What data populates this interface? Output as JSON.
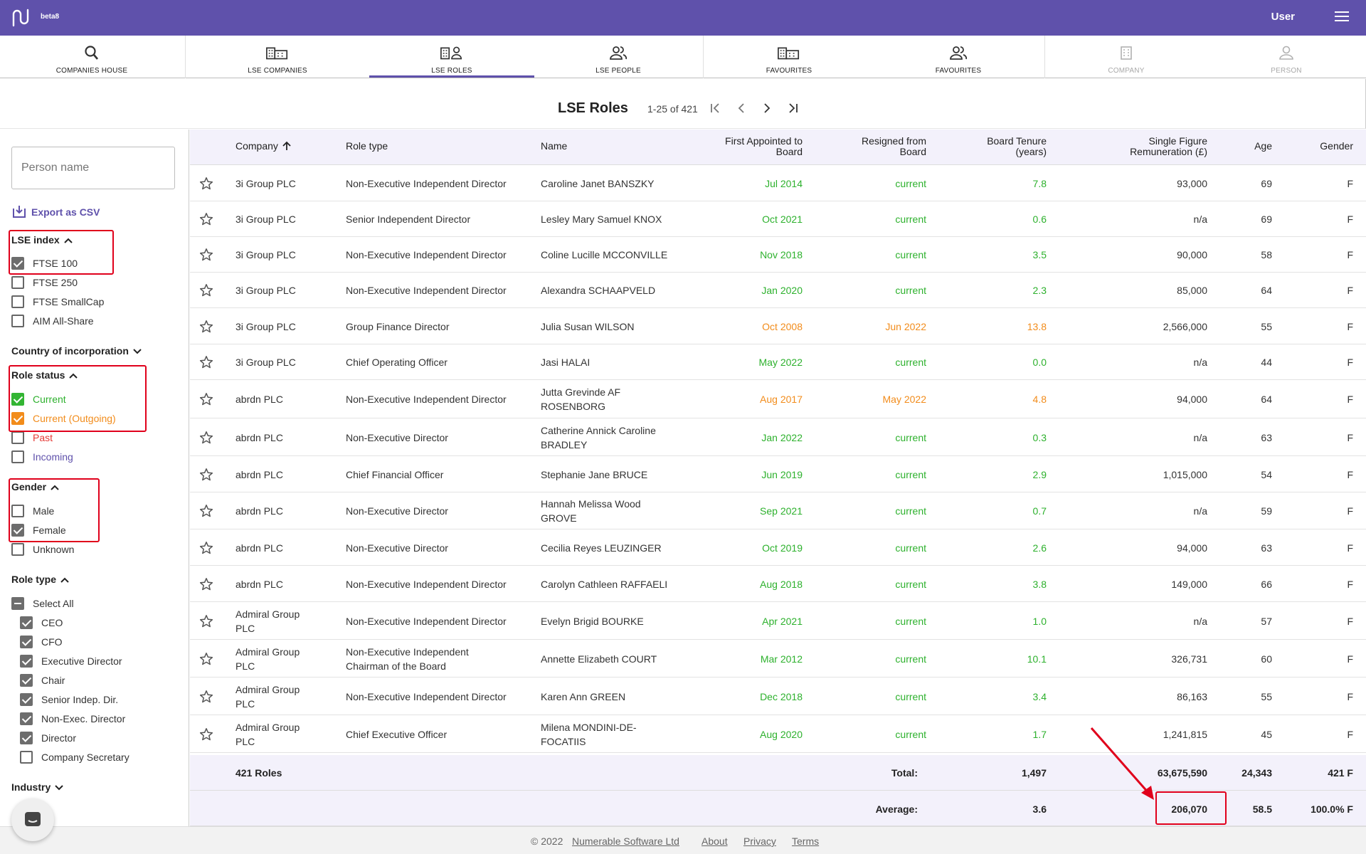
{
  "app": {
    "beta": "beta8",
    "user": "User"
  },
  "nav": [
    {
      "label": "COMPANIES HOUSE",
      "icon": "search-icon"
    },
    {
      "label": "LSE COMPANIES",
      "icon": "buildings-icon"
    },
    {
      "label": "LSE ROLES",
      "icon": "building-person-icon"
    },
    {
      "label": "LSE PEOPLE",
      "icon": "people-icon"
    },
    {
      "label": "FAVOURITES",
      "icon": "buildings-icon"
    },
    {
      "label": "FAVOURITES",
      "icon": "people-icon"
    },
    {
      "label": "COMPANY",
      "icon": "building-icon"
    },
    {
      "label": "PERSON",
      "icon": "person-icon"
    }
  ],
  "page": {
    "title": "LSE Roles",
    "range": "1-25 of 421"
  },
  "sidebar": {
    "search_placeholder": "Person name",
    "export": "Export as CSV",
    "lse_index": {
      "title": "LSE index",
      "items": [
        "FTSE 100",
        "FTSE 250",
        "FTSE SmallCap",
        "AIM All-Share"
      ]
    },
    "country": {
      "title": "Country of incorporation"
    },
    "role_status": {
      "title": "Role status",
      "items": [
        "Current",
        "Current (Outgoing)",
        "Past",
        "Incoming"
      ]
    },
    "gender": {
      "title": "Gender",
      "items": [
        "Male",
        "Female",
        "Unknown"
      ]
    },
    "role_type": {
      "title": "Role type",
      "items": [
        "Select All",
        "CEO",
        "CFO",
        "Executive Director",
        "Chair",
        "Senior Indep. Dir.",
        "Non-Exec. Director",
        "Director",
        "Company Secretary"
      ]
    },
    "industry": {
      "title": "Industry"
    }
  },
  "columns": {
    "company": "Company",
    "role": "Role type",
    "name": "Name",
    "appointed_1": "First Appointed to",
    "appointed_2": "Board",
    "resigned_1": "Resigned from",
    "resigned_2": "Board",
    "tenure_1": "Board Tenure",
    "tenure_2": "(years)",
    "rem_1": "Single Figure",
    "rem_2": "Remuneration (£)",
    "age": "Age",
    "gender": "Gender"
  },
  "rows": [
    {
      "company": "3i Group PLC",
      "role": "Non-Executive Independent Director",
      "name": "Caroline Janet BANSZKY",
      "appointed": "Jul 2014",
      "resigned": "current",
      "tenure": "7.8",
      "rem": "93,000",
      "age": "69",
      "gender": "F"
    },
    {
      "company": "3i Group PLC",
      "role": "Senior Independent Director",
      "name": "Lesley Mary Samuel KNOX",
      "appointed": "Oct 2021",
      "resigned": "current",
      "tenure": "0.6",
      "rem": "n/a",
      "age": "69",
      "gender": "F"
    },
    {
      "company": "3i Group PLC",
      "role": "Non-Executive Independent Director",
      "name": "Coline Lucille MCCONVILLE",
      "appointed": "Nov 2018",
      "resigned": "current",
      "tenure": "3.5",
      "rem": "90,000",
      "age": "58",
      "gender": "F"
    },
    {
      "company": "3i Group PLC",
      "role": "Non-Executive Independent Director",
      "name": "Alexandra SCHAAPVELD",
      "appointed": "Jan 2020",
      "resigned": "current",
      "tenure": "2.3",
      "rem": "85,000",
      "age": "64",
      "gender": "F"
    },
    {
      "company": "3i Group PLC",
      "role": "Group Finance Director",
      "name": "Julia Susan WILSON",
      "appointed": "Oct 2008",
      "resigned": "Jun 2022",
      "tenure": "13.8",
      "rem": "2,566,000",
      "age": "55",
      "gender": "F"
    },
    {
      "company": "3i Group PLC",
      "role": "Chief Operating Officer",
      "name": "Jasi HALAI",
      "appointed": "May 2022",
      "resigned": "current",
      "tenure": "0.0",
      "rem": "n/a",
      "age": "44",
      "gender": "F"
    },
    {
      "company": "abrdn PLC",
      "role": "Non-Executive Independent Director",
      "name_1": "Jutta Grevinde AF",
      "name_2": "ROSENBORG",
      "appointed": "Aug 2017",
      "resigned": "May 2022",
      "tenure": "4.8",
      "rem": "94,000",
      "age": "64",
      "gender": "F"
    },
    {
      "company": "abrdn PLC",
      "role": "Non-Executive Director",
      "name_1": "Catherine Annick Caroline",
      "name_2": "BRADLEY",
      "appointed": "Jan 2022",
      "resigned": "current",
      "tenure": "0.3",
      "rem": "n/a",
      "age": "63",
      "gender": "F"
    },
    {
      "company": "abrdn PLC",
      "role": "Chief Financial Officer",
      "name": "Stephanie Jane BRUCE",
      "appointed": "Jun 2019",
      "resigned": "current",
      "tenure": "2.9",
      "rem": "1,015,000",
      "age": "54",
      "gender": "F"
    },
    {
      "company": "abrdn PLC",
      "role": "Non-Executive Director",
      "name_1": "Hannah Melissa Wood",
      "name_2": "GROVE",
      "appointed": "Sep 2021",
      "resigned": "current",
      "tenure": "0.7",
      "rem": "n/a",
      "age": "59",
      "gender": "F"
    },
    {
      "company": "abrdn PLC",
      "role": "Non-Executive Director",
      "name": "Cecilia Reyes LEUZINGER",
      "appointed": "Oct 2019",
      "resigned": "current",
      "tenure": "2.6",
      "rem": "94,000",
      "age": "63",
      "gender": "F"
    },
    {
      "company": "abrdn PLC",
      "role": "Non-Executive Independent Director",
      "name": "Carolyn Cathleen RAFFAELI",
      "appointed": "Aug 2018",
      "resigned": "current",
      "tenure": "3.8",
      "rem": "149,000",
      "age": "66",
      "gender": "F"
    },
    {
      "company_1": "Admiral Group",
      "company_2": "PLC",
      "role": "Non-Executive Independent Director",
      "name": "Evelyn Brigid BOURKE",
      "appointed": "Apr 2021",
      "resigned": "current",
      "tenure": "1.0",
      "rem": "n/a",
      "age": "57",
      "gender": "F"
    },
    {
      "company_1": "Admiral Group",
      "company_2": "PLC",
      "role_1": "Non-Executive Independent",
      "role_2": "Chairman of the Board",
      "name": "Annette Elizabeth COURT",
      "appointed": "Mar 2012",
      "resigned": "current",
      "tenure": "10.1",
      "rem": "326,731",
      "age": "60",
      "gender": "F"
    },
    {
      "company_1": "Admiral Group",
      "company_2": "PLC",
      "role": "Non-Executive Independent Director",
      "name": "Karen Ann GREEN",
      "appointed": "Dec 2018",
      "resigned": "current",
      "tenure": "3.4",
      "rem": "86,163",
      "age": "55",
      "gender": "F"
    },
    {
      "company_1": "Admiral Group",
      "company_2": "PLC",
      "role": "Chief Executive Officer",
      "name_1": "Milena MONDINI-DE-",
      "name_2": "FOCATIIS",
      "appointed": "Aug 2020",
      "resigned": "current",
      "tenure": "1.7",
      "rem": "1,241,815",
      "age": "45",
      "gender": "F"
    }
  ],
  "totals": {
    "count": "421 Roles",
    "label": "Total:",
    "tenure": "1,497",
    "rem": "63,675,590",
    "age": "24,343",
    "gender": "421 F"
  },
  "averages": {
    "label": "Average:",
    "tenure": "3.6",
    "rem": "206,070",
    "age": "58.5",
    "gender": "100.0% F"
  },
  "footer": {
    "copyright": "© 2022",
    "company": "Numerable Software Ltd",
    "about": "About",
    "privacy": "Privacy",
    "terms": "Terms"
  },
  "colors": {
    "brand": "#5f51ab",
    "current": "#2db12d",
    "outgoing": "#f28c1b",
    "past": "#e53935",
    "incoming": "#5f51ab",
    "highlight": "#e0001b"
  }
}
